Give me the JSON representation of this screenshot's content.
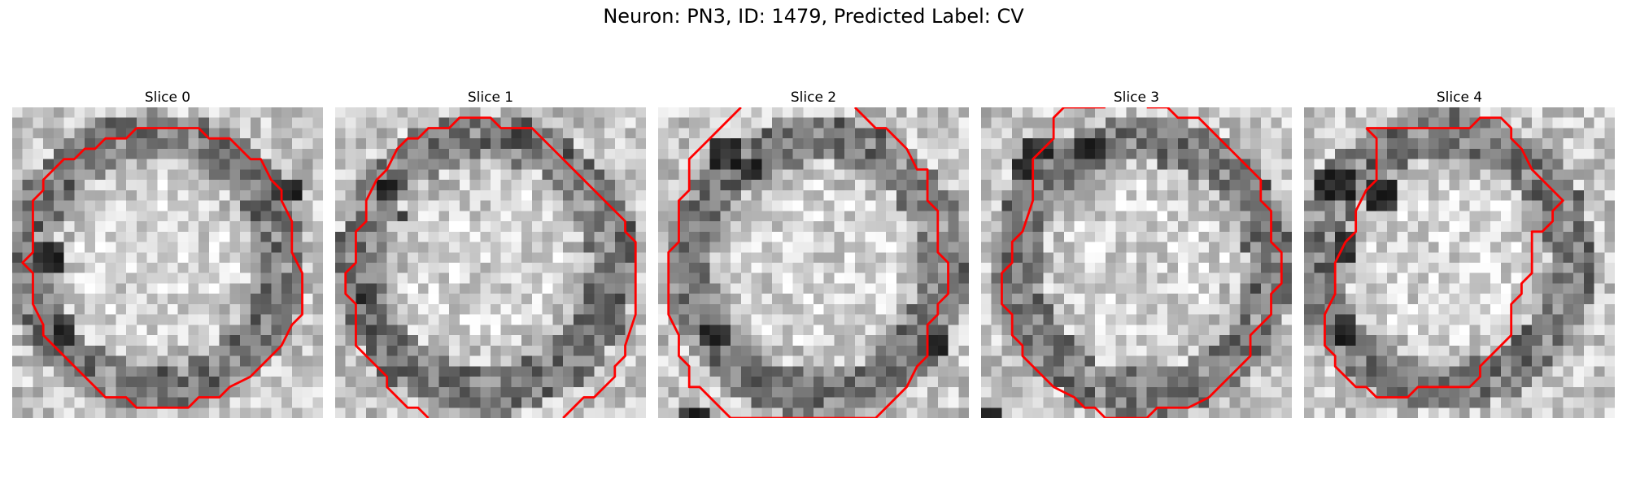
{
  "figure": {
    "title": "Neuron: PN3, ID: 1479, Predicted Label: CV"
  },
  "panels": [
    {
      "title": "Slice 0",
      "contour": [
        [
          12,
          2
        ],
        [
          18,
          2
        ],
        [
          19,
          3
        ],
        [
          21,
          3
        ],
        [
          23,
          5
        ],
        [
          24,
          5
        ],
        [
          25,
          7
        ],
        [
          26,
          8
        ],
        [
          26,
          9
        ],
        [
          27,
          11
        ],
        [
          27,
          14
        ],
        [
          28,
          16
        ],
        [
          28,
          20
        ],
        [
          27,
          21
        ],
        [
          26,
          23
        ],
        [
          25,
          24
        ],
        [
          23,
          26
        ],
        [
          21,
          27
        ],
        [
          20,
          28
        ],
        [
          18,
          28
        ],
        [
          17,
          29
        ],
        [
          12,
          29
        ],
        [
          11,
          28
        ],
        [
          9,
          28
        ],
        [
          8,
          27
        ],
        [
          7,
          26
        ],
        [
          6,
          25
        ],
        [
          4,
          23
        ],
        [
          3,
          22
        ],
        [
          3,
          21
        ],
        [
          2,
          19
        ],
        [
          2,
          16
        ],
        [
          1,
          15
        ],
        [
          2,
          14
        ],
        [
          2,
          9
        ],
        [
          3,
          8
        ],
        [
          3,
          7
        ],
        [
          4,
          6
        ],
        [
          5,
          5
        ],
        [
          6,
          5
        ],
        [
          7,
          4
        ],
        [
          8,
          4
        ],
        [
          9,
          3
        ],
        [
          11,
          3
        ]
      ]
    },
    {
      "title": "Slice 1",
      "contour": [
        [
          9,
          30
        ],
        [
          8,
          29
        ],
        [
          7,
          29
        ],
        [
          5,
          27
        ],
        [
          5,
          26
        ],
        [
          4,
          25
        ],
        [
          3,
          24
        ],
        [
          2,
          23
        ],
        [
          2,
          22
        ],
        [
          2,
          19
        ],
        [
          1,
          18
        ],
        [
          1,
          16
        ],
        [
          2,
          15
        ],
        [
          2,
          12
        ],
        [
          3,
          11
        ],
        [
          3,
          9
        ],
        [
          4,
          7
        ],
        [
          5,
          6
        ],
        [
          6,
          4
        ],
        [
          7,
          3
        ],
        [
          8,
          3
        ],
        [
          9,
          2
        ],
        [
          11,
          2
        ],
        [
          12,
          1
        ],
        [
          15,
          1
        ],
        [
          16,
          2
        ],
        [
          19,
          2
        ],
        [
          21,
          4
        ],
        [
          22,
          5
        ],
        [
          23,
          6
        ],
        [
          24,
          7
        ],
        [
          25,
          8
        ],
        [
          26,
          9
        ],
        [
          27,
          10
        ],
        [
          28,
          11
        ],
        [
          28,
          12
        ],
        [
          29,
          13
        ],
        [
          29,
          20
        ],
        [
          28,
          23
        ],
        [
          28,
          24
        ],
        [
          27,
          25
        ],
        [
          27,
          26
        ],
        [
          26,
          27
        ],
        [
          25,
          28
        ],
        [
          24,
          28
        ],
        [
          23,
          29
        ],
        [
          22,
          30
        ]
      ]
    },
    {
      "title": "Slice 2",
      "contour": [
        [
          8,
          0
        ],
        [
          5,
          3
        ],
        [
          4,
          4
        ],
        [
          3,
          5
        ],
        [
          3,
          8
        ],
        [
          2,
          9
        ],
        [
          2,
          13
        ],
        [
          1,
          14
        ],
        [
          1,
          20
        ],
        [
          2,
          22
        ],
        [
          2,
          24
        ],
        [
          3,
          25
        ],
        [
          3,
          27
        ],
        [
          4,
          27
        ],
        [
          5,
          28
        ],
        [
          6,
          29
        ],
        [
          7,
          30
        ],
        [
          21,
          30
        ],
        [
          22,
          29
        ],
        [
          23,
          28
        ],
        [
          24,
          27
        ],
        [
          25,
          25
        ],
        [
          26,
          24
        ],
        [
          26,
          21
        ],
        [
          27,
          20
        ],
        [
          27,
          19
        ],
        [
          28,
          18
        ],
        [
          28,
          15
        ],
        [
          27,
          14
        ],
        [
          27,
          10
        ],
        [
          26,
          9
        ],
        [
          26,
          6
        ],
        [
          25,
          6
        ],
        [
          24,
          4
        ],
        [
          23,
          3
        ],
        [
          22,
          2
        ],
        [
          21,
          2
        ],
        [
          20,
          1
        ],
        [
          19,
          0
        ]
      ]
    },
    {
      "title": "Slice 3",
      "contour": [
        [
          12,
          0
        ],
        [
          8,
          0
        ],
        [
          7,
          1
        ],
        [
          7,
          3
        ],
        [
          6,
          4
        ],
        [
          5,
          5
        ],
        [
          5,
          9
        ],
        [
          4,
          12
        ],
        [
          3,
          13
        ],
        [
          3,
          15
        ],
        [
          2,
          16
        ],
        [
          2,
          19
        ],
        [
          3,
          20
        ],
        [
          3,
          22
        ],
        [
          4,
          23
        ],
        [
          4,
          24
        ],
        [
          5,
          25
        ],
        [
          6,
          26
        ],
        [
          7,
          27
        ],
        [
          9,
          28
        ],
        [
          10,
          29
        ],
        [
          11,
          29
        ],
        [
          12,
          30
        ],
        [
          16,
          30
        ],
        [
          17,
          29
        ],
        [
          20,
          29
        ],
        [
          22,
          28
        ],
        [
          23,
          27
        ],
        [
          24,
          26
        ],
        [
          25,
          25
        ],
        [
          26,
          24
        ],
        [
          26,
          22
        ],
        [
          27,
          21
        ],
        [
          28,
          20
        ],
        [
          28,
          18
        ],
        [
          29,
          17
        ],
        [
          29,
          14
        ],
        [
          28,
          13
        ],
        [
          28,
          10
        ],
        [
          27,
          9
        ],
        [
          27,
          7
        ],
        [
          26,
          6
        ],
        [
          25,
          5
        ],
        [
          24,
          4
        ],
        [
          23,
          3
        ],
        [
          22,
          2
        ],
        [
          21,
          1
        ],
        [
          19,
          1
        ],
        [
          18,
          0
        ],
        [
          16,
          0
        ]
      ]
    },
    {
      "title": "Slice 4",
      "contour": [
        [
          6,
          2
        ],
        [
          16,
          2
        ],
        [
          17,
          1
        ],
        [
          19,
          1
        ],
        [
          20,
          2
        ],
        [
          20,
          3
        ],
        [
          21,
          4
        ],
        [
          22,
          6
        ],
        [
          23,
          7
        ],
        [
          24,
          8
        ],
        [
          25,
          9
        ],
        [
          24,
          10
        ],
        [
          24,
          11
        ],
        [
          23,
          12
        ],
        [
          22,
          12
        ],
        [
          22,
          16
        ],
        [
          21,
          17
        ],
        [
          21,
          18
        ],
        [
          20,
          19
        ],
        [
          20,
          22
        ],
        [
          19,
          23
        ],
        [
          18,
          24
        ],
        [
          17,
          25
        ],
        [
          17,
          26
        ],
        [
          16,
          27
        ],
        [
          11,
          27
        ],
        [
          10,
          28
        ],
        [
          7,
          28
        ],
        [
          6,
          27
        ],
        [
          5,
          27
        ],
        [
          4,
          26
        ],
        [
          3,
          25
        ],
        [
          3,
          24
        ],
        [
          2,
          23
        ],
        [
          2,
          20
        ],
        [
          3,
          18
        ],
        [
          3,
          15
        ],
        [
          4,
          13
        ],
        [
          5,
          12
        ],
        [
          5,
          10
        ],
        [
          6,
          8
        ],
        [
          7,
          7
        ],
        [
          7,
          4
        ],
        [
          7,
          3
        ]
      ]
    }
  ],
  "colors": {
    "contour": "#ff0000"
  }
}
